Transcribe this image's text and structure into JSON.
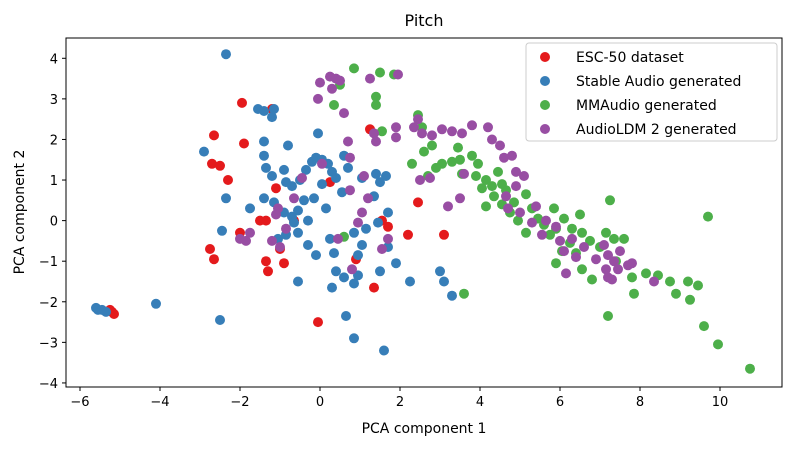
{
  "chart_data": {
    "type": "scatter",
    "title": "Pitch",
    "xlabel": "PCA component 1",
    "ylabel": "PCA component 2",
    "xlim": [
      -6.35,
      11.55
    ],
    "ylim": [
      -4.1,
      4.5
    ],
    "xticks": [
      -6,
      -4,
      -2,
      0,
      2,
      4,
      6,
      8,
      10
    ],
    "yticks": [
      -4,
      -3,
      -2,
      -1,
      0,
      1,
      2,
      3,
      4
    ],
    "grid": false,
    "legend_position": "top-right",
    "series": [
      {
        "name": "ESC-50 dataset",
        "color": "#e41a1c",
        "points": [
          [
            -1.95,
            2.9
          ],
          [
            -2.65,
            2.1
          ],
          [
            -1.9,
            1.9
          ],
          [
            -2.7,
            1.4
          ],
          [
            -2.5,
            1.35
          ],
          [
            -2.3,
            1.0
          ],
          [
            -1.2,
            2.75
          ],
          [
            -1.1,
            0.8
          ],
          [
            -1.5,
            0.0
          ],
          [
            -2.0,
            -0.3
          ],
          [
            -2.75,
            -0.7
          ],
          [
            -2.65,
            -0.95
          ],
          [
            -1.35,
            -1.0
          ],
          [
            -1.3,
            -1.25
          ],
          [
            -1.35,
            0.0
          ],
          [
            -0.9,
            -1.05
          ],
          [
            -1.0,
            -0.7
          ],
          [
            -0.65,
            0.0
          ],
          [
            0.25,
            0.95
          ],
          [
            0.9,
            -0.95
          ],
          [
            1.35,
            -1.65
          ],
          [
            1.25,
            2.25
          ],
          [
            1.55,
            0.0
          ],
          [
            1.7,
            -0.15
          ],
          [
            2.2,
            -0.35
          ],
          [
            2.45,
            0.45
          ],
          [
            3.1,
            -0.35
          ],
          [
            -0.05,
            -2.5
          ],
          [
            -5.25,
            -2.2
          ],
          [
            -5.2,
            -2.25
          ],
          [
            -5.15,
            -2.3
          ]
        ]
      },
      {
        "name": "Stable Audio generated",
        "color": "#377eb8",
        "points": [
          [
            -2.35,
            4.1
          ],
          [
            -1.55,
            2.75
          ],
          [
            -1.4,
            2.7
          ],
          [
            -1.2,
            2.55
          ],
          [
            -1.15,
            2.75
          ],
          [
            -2.9,
            1.7
          ],
          [
            -1.4,
            1.95
          ],
          [
            -1.4,
            1.6
          ],
          [
            -0.8,
            1.85
          ],
          [
            -1.35,
            1.3
          ],
          [
            -1.2,
            1.1
          ],
          [
            -0.9,
            1.25
          ],
          [
            -0.85,
            0.95
          ],
          [
            -0.7,
            0.85
          ],
          [
            -0.5,
            1.0
          ],
          [
            -0.35,
            1.25
          ],
          [
            -0.2,
            1.45
          ],
          [
            -0.1,
            1.55
          ],
          [
            0.05,
            1.5
          ],
          [
            0.2,
            1.4
          ],
          [
            0.3,
            1.2
          ],
          [
            -0.05,
            2.15
          ],
          [
            0.6,
            1.6
          ],
          [
            0.7,
            1.3
          ],
          [
            0.4,
            1.05
          ],
          [
            0.55,
            0.7
          ],
          [
            0.05,
            0.9
          ],
          [
            -0.15,
            0.55
          ],
          [
            0.15,
            0.3
          ],
          [
            -0.4,
            0.5
          ],
          [
            -0.55,
            0.25
          ],
          [
            -0.7,
            0.1
          ],
          [
            -0.9,
            0.2
          ],
          [
            -1.15,
            0.45
          ],
          [
            -1.4,
            0.55
          ],
          [
            -1.75,
            0.3
          ],
          [
            -0.3,
            0.0
          ],
          [
            -0.65,
            -0.05
          ],
          [
            -0.85,
            -0.35
          ],
          [
            -1.05,
            -0.45
          ],
          [
            -0.55,
            -0.3
          ],
          [
            -0.3,
            -0.6
          ],
          [
            -0.1,
            -0.85
          ],
          [
            0.25,
            -0.45
          ],
          [
            0.35,
            -0.8
          ],
          [
            0.85,
            -0.3
          ],
          [
            1.05,
            -0.6
          ],
          [
            1.15,
            -0.2
          ],
          [
            1.35,
            0.6
          ],
          [
            1.5,
            0.95
          ],
          [
            1.05,
            1.05
          ],
          [
            1.4,
            1.15
          ],
          [
            1.65,
            1.1
          ],
          [
            1.7,
            0.2
          ],
          [
            1.45,
            -0.05
          ],
          [
            1.9,
            -1.05
          ],
          [
            1.7,
            -0.65
          ],
          [
            1.5,
            -1.25
          ],
          [
            2.25,
            -1.5
          ],
          [
            0.6,
            -1.4
          ],
          [
            0.95,
            -0.85
          ],
          [
            0.85,
            -1.55
          ],
          [
            0.4,
            -1.25
          ],
          [
            -0.55,
            -1.5
          ],
          [
            0.3,
            -1.65
          ],
          [
            0.95,
            -1.35
          ],
          [
            3.0,
            -1.25
          ],
          [
            3.1,
            -1.5
          ],
          [
            3.3,
            -1.85
          ],
          [
            -2.45,
            -0.25
          ],
          [
            -2.35,
            0.55
          ],
          [
            -4.1,
            -2.05
          ],
          [
            -2.5,
            -2.45
          ],
          [
            -5.6,
            -2.15
          ],
          [
            -5.55,
            -2.2
          ],
          [
            -5.45,
            -2.2
          ],
          [
            -5.35,
            -2.25
          ],
          [
            0.65,
            -2.35
          ],
          [
            0.85,
            -2.9
          ],
          [
            1.6,
            -3.2
          ]
        ]
      },
      {
        "name": "MMAudio generated",
        "color": "#4daf4a",
        "points": [
          [
            0.85,
            3.75
          ],
          [
            1.5,
            3.65
          ],
          [
            1.85,
            3.6
          ],
          [
            0.5,
            3.35
          ],
          [
            1.4,
            3.05
          ],
          [
            2.45,
            2.6
          ],
          [
            1.4,
            2.85
          ],
          [
            1.55,
            2.2
          ],
          [
            2.55,
            2.3
          ],
          [
            2.8,
            1.85
          ],
          [
            2.6,
            1.7
          ],
          [
            2.9,
            1.3
          ],
          [
            2.3,
            1.4
          ],
          [
            2.7,
            1.1
          ],
          [
            3.05,
            1.4
          ],
          [
            3.3,
            1.45
          ],
          [
            3.45,
            1.8
          ],
          [
            3.5,
            1.5
          ],
          [
            3.55,
            1.15
          ],
          [
            3.8,
            1.6
          ],
          [
            3.95,
            1.4
          ],
          [
            3.9,
            1.1
          ],
          [
            4.05,
            0.8
          ],
          [
            4.15,
            1.0
          ],
          [
            4.3,
            0.85
          ],
          [
            4.45,
            1.2
          ],
          [
            4.55,
            0.9
          ],
          [
            4.35,
            0.6
          ],
          [
            4.15,
            0.35
          ],
          [
            4.55,
            0.4
          ],
          [
            4.65,
            0.75
          ],
          [
            4.85,
            0.45
          ],
          [
            4.75,
            0.2
          ],
          [
            4.95,
            0.0
          ],
          [
            5.15,
            0.65
          ],
          [
            5.3,
            0.3
          ],
          [
            5.45,
            0.05
          ],
          [
            5.6,
            -0.1
          ],
          [
            5.9,
            -0.2
          ],
          [
            5.85,
            0.3
          ],
          [
            6.1,
            0.05
          ],
          [
            6.3,
            -0.2
          ],
          [
            6.5,
            0.15
          ],
          [
            6.55,
            -0.3
          ],
          [
            6.25,
            -0.55
          ],
          [
            6.05,
            -0.75
          ],
          [
            5.9,
            -1.05
          ],
          [
            5.75,
            -0.35
          ],
          [
            6.4,
            -0.8
          ],
          [
            6.55,
            -1.2
          ],
          [
            6.8,
            -1.45
          ],
          [
            6.75,
            -0.5
          ],
          [
            7.0,
            -0.65
          ],
          [
            7.15,
            -0.3
          ],
          [
            7.35,
            -0.45
          ],
          [
            7.6,
            -0.45
          ],
          [
            7.4,
            -1.0
          ],
          [
            7.8,
            -1.4
          ],
          [
            7.85,
            -1.8
          ],
          [
            7.2,
            -2.35
          ],
          [
            8.15,
            -1.3
          ],
          [
            8.45,
            -1.35
          ],
          [
            8.75,
            -1.5
          ],
          [
            8.9,
            -1.8
          ],
          [
            9.2,
            -1.5
          ],
          [
            9.25,
            -1.95
          ],
          [
            9.45,
            -1.6
          ],
          [
            9.6,
            -2.6
          ],
          [
            9.95,
            -3.05
          ],
          [
            10.75,
            -3.65
          ],
          [
            9.7,
            0.1
          ],
          [
            7.25,
            0.5
          ],
          [
            5.15,
            -0.3
          ],
          [
            3.6,
            -1.8
          ],
          [
            0.6,
            -0.4
          ],
          [
            0.35,
            2.85
          ]
        ]
      },
      {
        "name": "AudioLDM 2 generated",
        "color": "#984ea3",
        "points": [
          [
            0.25,
            3.55
          ],
          [
            0.4,
            3.5
          ],
          [
            0.5,
            3.45
          ],
          [
            0.0,
            3.4
          ],
          [
            0.3,
            3.25
          ],
          [
            1.25,
            3.5
          ],
          [
            1.95,
            3.6
          ],
          [
            -0.05,
            3.0
          ],
          [
            0.6,
            2.65
          ],
          [
            0.7,
            1.95
          ],
          [
            0.75,
            1.55
          ],
          [
            1.35,
            2.15
          ],
          [
            1.4,
            1.95
          ],
          [
            1.9,
            2.05
          ],
          [
            1.9,
            2.3
          ],
          [
            2.45,
            2.5
          ],
          [
            2.35,
            2.3
          ],
          [
            2.55,
            2.15
          ],
          [
            2.8,
            2.1
          ],
          [
            3.05,
            2.25
          ],
          [
            3.3,
            2.2
          ],
          [
            3.55,
            2.15
          ],
          [
            3.8,
            2.35
          ],
          [
            4.2,
            2.3
          ],
          [
            4.3,
            2.0
          ],
          [
            4.5,
            1.85
          ],
          [
            4.6,
            1.55
          ],
          [
            4.8,
            1.6
          ],
          [
            4.9,
            1.2
          ],
          [
            5.1,
            1.1
          ],
          [
            4.9,
            0.85
          ],
          [
            4.65,
            0.6
          ],
          [
            4.7,
            0.3
          ],
          [
            5.0,
            0.2
          ],
          [
            5.4,
            0.35
          ],
          [
            5.3,
            -0.05
          ],
          [
            5.55,
            -0.35
          ],
          [
            5.65,
            0.0
          ],
          [
            5.9,
            -0.15
          ],
          [
            6.0,
            -0.5
          ],
          [
            6.1,
            -0.75
          ],
          [
            6.3,
            -0.45
          ],
          [
            6.4,
            -0.9
          ],
          [
            6.6,
            -0.65
          ],
          [
            6.9,
            -0.95
          ],
          [
            7.1,
            -0.6
          ],
          [
            7.2,
            -0.85
          ],
          [
            7.35,
            -1.0
          ],
          [
            7.45,
            -1.2
          ],
          [
            7.5,
            -0.75
          ],
          [
            7.7,
            -1.1
          ],
          [
            7.15,
            -1.2
          ],
          [
            7.3,
            -1.45
          ],
          [
            7.8,
            -1.05
          ],
          [
            8.35,
            -1.5
          ],
          [
            7.2,
            -1.4
          ],
          [
            6.15,
            -1.3
          ],
          [
            3.2,
            0.35
          ],
          [
            3.5,
            0.55
          ],
          [
            2.5,
            1.0
          ],
          [
            2.75,
            1.05
          ],
          [
            3.6,
            1.15
          ],
          [
            1.1,
            1.1
          ],
          [
            0.75,
            0.75
          ],
          [
            1.2,
            0.55
          ],
          [
            1.05,
            0.2
          ],
          [
            0.95,
            -0.05
          ],
          [
            0.05,
            1.4
          ],
          [
            -0.45,
            1.05
          ],
          [
            -0.65,
            0.55
          ],
          [
            -1.05,
            0.3
          ],
          [
            -1.1,
            0.15
          ],
          [
            -0.85,
            -0.2
          ],
          [
            -1.75,
            -0.3
          ],
          [
            -2.0,
            -0.45
          ],
          [
            -1.85,
            -0.5
          ],
          [
            -1.2,
            -0.5
          ],
          [
            -1.0,
            -0.65
          ],
          [
            0.45,
            -0.45
          ],
          [
            1.55,
            -0.7
          ],
          [
            1.7,
            -0.45
          ],
          [
            0.8,
            -1.2
          ]
        ]
      }
    ]
  }
}
